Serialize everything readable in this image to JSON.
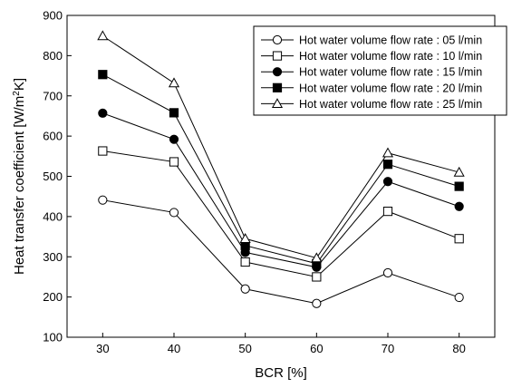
{
  "chart_data": {
    "type": "line",
    "xlabel": "BCR [%]",
    "ylabel_main": "Heat transfer coefficient [W/m",
    "ylabel_sup": "2",
    "ylabel_tail": "K]",
    "xlim": [
      25,
      85
    ],
    "ylim": [
      100,
      900
    ],
    "xticks": [
      30,
      40,
      50,
      60,
      70,
      80
    ],
    "yticks": [
      100,
      200,
      300,
      400,
      500,
      600,
      700,
      800,
      900
    ],
    "legend_position": "top-right",
    "x": [
      30,
      40,
      50,
      60,
      70,
      80
    ],
    "series": [
      {
        "name": "Hot water volume flow rate : 05 l/min",
        "marker": "circle-open",
        "values": [
          441,
          410,
          220,
          184,
          260,
          199
        ]
      },
      {
        "name": "Hot water volume flow rate : 10 l/min",
        "marker": "square-open",
        "values": [
          563,
          536,
          287,
          250,
          413,
          345
        ]
      },
      {
        "name": "Hot water volume flow rate : 15 l/min",
        "marker": "circle-filled",
        "values": [
          657,
          592,
          311,
          274,
          487,
          425
        ]
      },
      {
        "name": "Hot water volume flow rate : 20 l/min",
        "marker": "square-filled",
        "values": [
          753,
          658,
          328,
          283,
          530,
          475
        ]
      },
      {
        "name": "Hot water volume flow rate : 25 l/min",
        "marker": "triangle-open",
        "values": [
          849,
          732,
          345,
          297,
          558,
          510
        ]
      }
    ]
  }
}
